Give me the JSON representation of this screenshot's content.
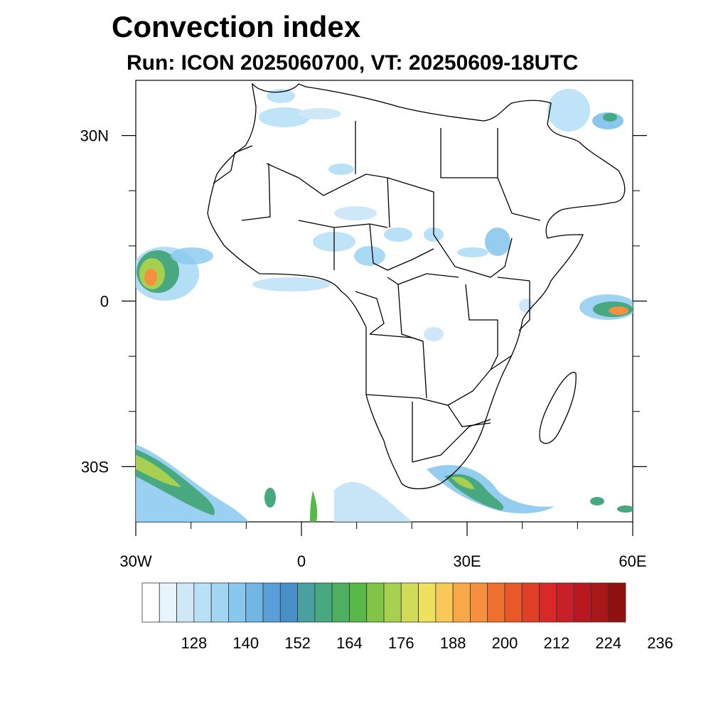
{
  "title": "Convection index",
  "subtitle": "Run: ICON 2025060700,  VT: 20250609-18UTC",
  "map": {
    "lon_range": [
      -30,
      60
    ],
    "lat_range": [
      -40,
      40
    ],
    "lon_ticks": [
      {
        "value": -30,
        "label": "30W"
      },
      {
        "value": 0,
        "label": "0"
      },
      {
        "value": 30,
        "label": "30E"
      },
      {
        "value": 60,
        "label": "60E"
      }
    ],
    "lat_ticks": [
      {
        "value": 30,
        "label": "30N"
      },
      {
        "value": 0,
        "label": "0"
      },
      {
        "value": -30,
        "label": "30S"
      }
    ],
    "minor_lon_ticks": [
      -20,
      -10,
      10,
      20,
      40,
      50
    ],
    "minor_lat_ticks": [
      20,
      10,
      -10,
      -20
    ]
  },
  "colorbar": {
    "colors": [
      "#ffffff",
      "#e8f4fc",
      "#cfe8f8",
      "#b8e0f6",
      "#a0d6f4",
      "#88c8ee",
      "#72b6e6",
      "#5aa0d8",
      "#4a90c8",
      "#48a0a0",
      "#48a880",
      "#4cb060",
      "#58b848",
      "#80c448",
      "#a8d050",
      "#d0dc58",
      "#f0e060",
      "#f8c858",
      "#f8a848",
      "#f49040",
      "#f07030",
      "#e85828",
      "#e04028",
      "#d82828",
      "#c82028",
      "#b81820",
      "#a81818",
      "#901010"
    ],
    "labels": [
      "128",
      "140",
      "152",
      "164",
      "176",
      "188",
      "200",
      "212",
      "224",
      "236"
    ]
  }
}
